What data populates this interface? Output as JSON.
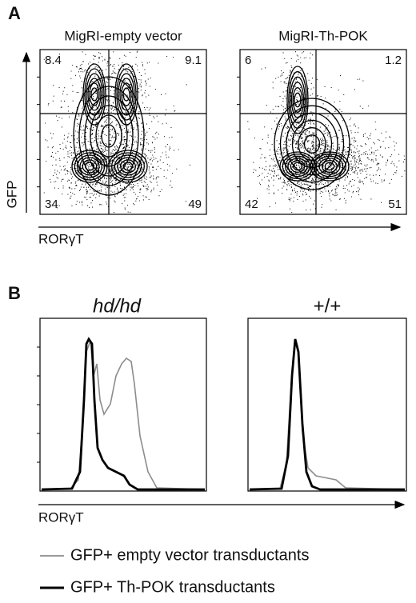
{
  "panel_a": {
    "label": "A",
    "y_axis_label": "GFP",
    "x_axis_label": "RORγT",
    "plots": [
      {
        "title": "MigRI-empty vector",
        "quadrants": {
          "upper_left": 8.4,
          "upper_right": 9.1,
          "lower_left": 34,
          "lower_right": 49
        }
      },
      {
        "title": "MigRI-Th-POK",
        "quadrants": {
          "upper_left": 6,
          "upper_right": 1.2,
          "lower_left": 42,
          "lower_right": 51
        }
      }
    ]
  },
  "panel_b": {
    "label": "B",
    "x_axis_label": "RORγT",
    "plots": [
      {
        "title": "hd/hd",
        "italic": true
      },
      {
        "title": "+/+",
        "italic": false
      }
    ],
    "legend": [
      {
        "name": "GFP+ empty vector transductants",
        "color": "#8c8c8c"
      },
      {
        "name": "GFP+ Th-POK transductants",
        "color": "#000000"
      }
    ]
  }
}
